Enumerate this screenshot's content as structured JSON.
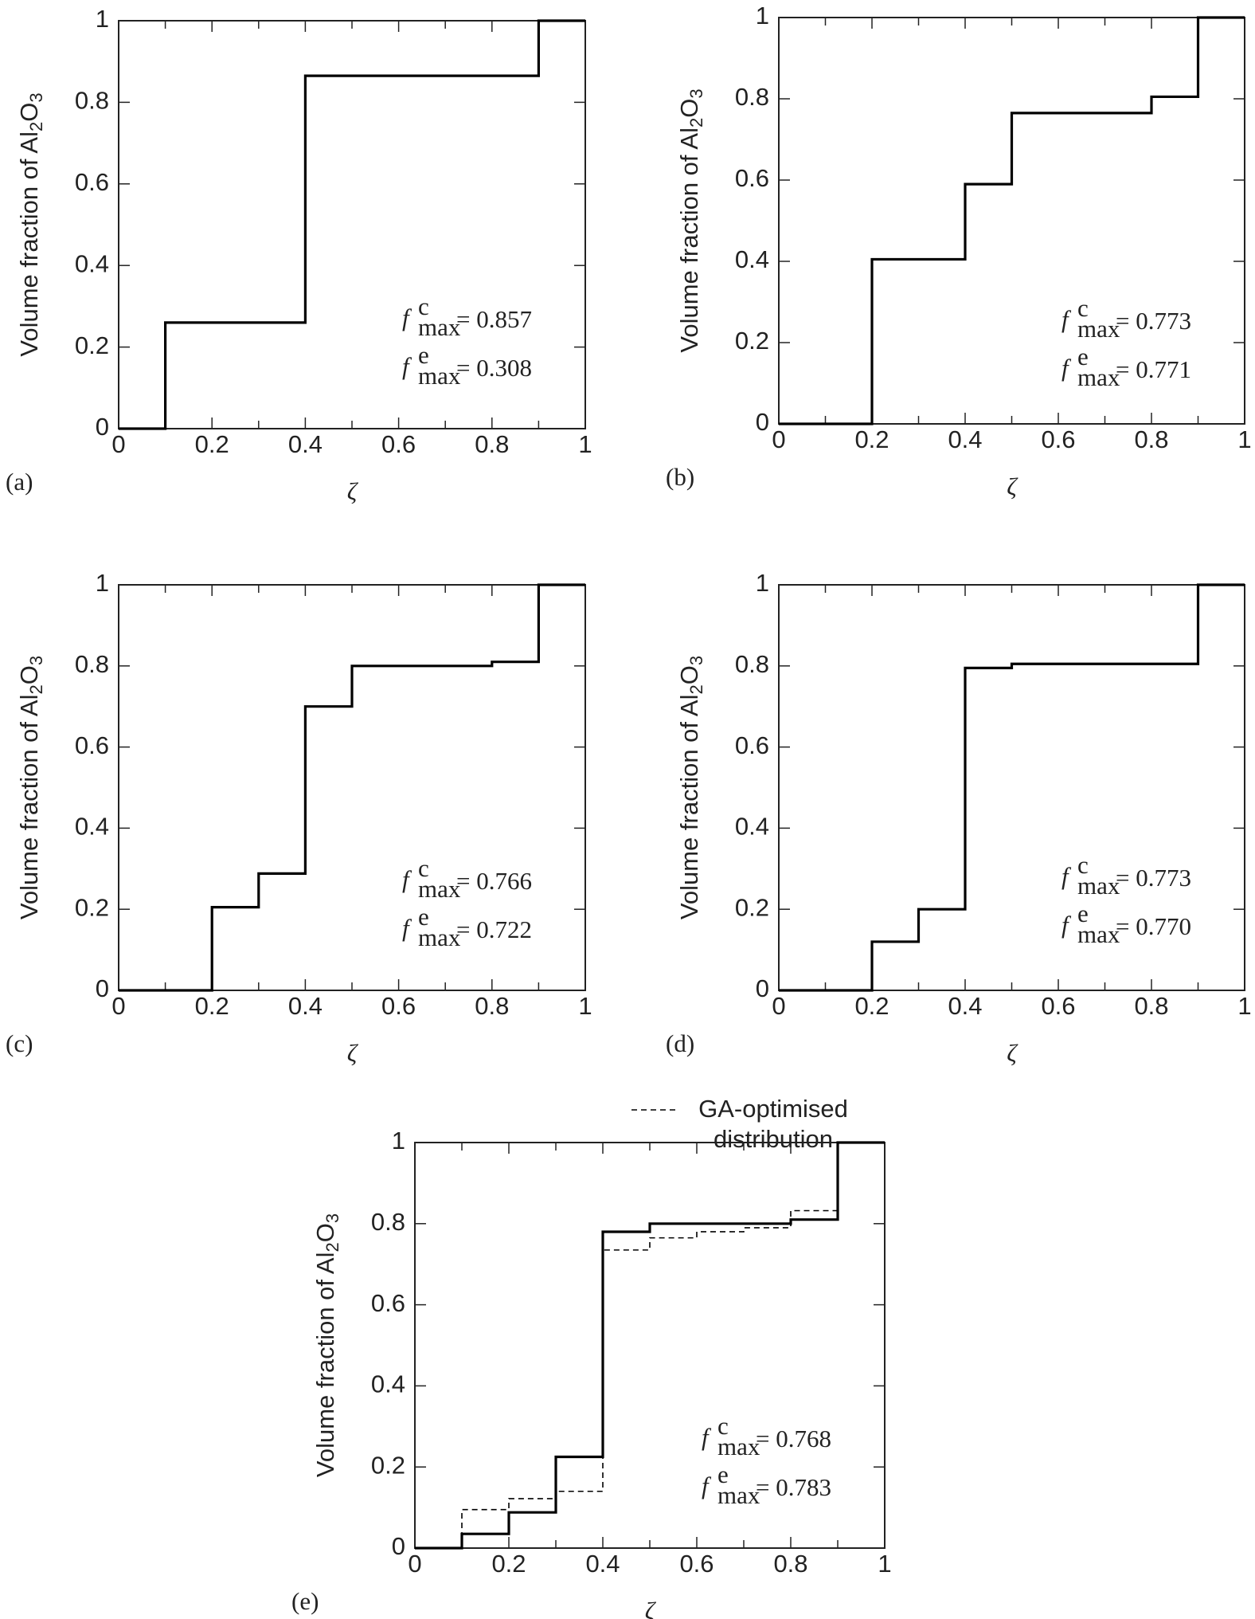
{
  "chart_data": [
    {
      "type": "step",
      "panel": "(a)",
      "ylabel": [
        "Volume fraction of Al",
        "2",
        "O",
        "3"
      ],
      "xlabel": "ζ",
      "x": [
        0,
        0.1,
        0.2,
        0.3,
        0.4,
        0.5,
        0.6,
        0.7,
        0.8,
        0.9
      ],
      "series": [
        {
          "color": "#000000",
          "dash": false,
          "values": [
            0,
            0.26,
            0.26,
            0.26,
            0.865,
            0.865,
            0.865,
            0.865,
            0.865,
            1.0
          ]
        }
      ],
      "xlim": [
        0,
        1
      ],
      "ylim": [
        0,
        1
      ],
      "xticks": [
        0,
        0.2,
        0.4,
        0.6,
        0.8,
        1
      ],
      "xminorticks": [
        0.1,
        0.3,
        0.5,
        0.7,
        0.9
      ],
      "yticks": [
        0,
        0.2,
        0.4,
        0.6,
        0.8,
        1
      ],
      "annotations": [
        {
          "symbol": "f",
          "sup": "c",
          "sub": "max",
          "text": "= 0.857"
        },
        {
          "symbol": "f",
          "sup": "e",
          "sub": "max",
          "text": "= 0.308"
        }
      ]
    },
    {
      "type": "step",
      "panel": "(b)",
      "ylabel": [
        "Volume fraction of Al",
        "2",
        "O",
        "3"
      ],
      "xlabel": "ζ",
      "x": [
        0,
        0.1,
        0.2,
        0.3,
        0.4,
        0.5,
        0.6,
        0.7,
        0.8,
        0.9
      ],
      "series": [
        {
          "color": "#000000",
          "dash": false,
          "values": [
            0,
            0,
            0.405,
            0.405,
            0.59,
            0.765,
            0.765,
            0.765,
            0.805,
            1.0
          ]
        }
      ],
      "xlim": [
        0,
        1
      ],
      "ylim": [
        0,
        1
      ],
      "xticks": [
        0,
        0.2,
        0.4,
        0.6,
        0.8,
        1
      ],
      "xminorticks": [
        0.1,
        0.3,
        0.5,
        0.7,
        0.9
      ],
      "yticks": [
        0,
        0.2,
        0.4,
        0.6,
        0.8,
        1
      ],
      "annotations": [
        {
          "symbol": "f",
          "sup": "c",
          "sub": "max",
          "text": "= 0.773"
        },
        {
          "symbol": "f",
          "sup": "e",
          "sub": "max",
          "text": "= 0.771"
        }
      ]
    },
    {
      "type": "step",
      "panel": "(c)",
      "ylabel": [
        "Volume fraction of Al",
        "2",
        "O",
        "3"
      ],
      "xlabel": "ζ",
      "x": [
        0,
        0.1,
        0.2,
        0.3,
        0.4,
        0.5,
        0.6,
        0.7,
        0.8,
        0.9
      ],
      "series": [
        {
          "color": "#000000",
          "dash": false,
          "values": [
            0,
            0,
            0.205,
            0.288,
            0.7,
            0.8,
            0.8,
            0.8,
            0.81,
            1.0
          ]
        }
      ],
      "xlim": [
        0,
        1
      ],
      "ylim": [
        0,
        1
      ],
      "xticks": [
        0,
        0.2,
        0.4,
        0.6,
        0.8,
        1
      ],
      "xminorticks": [
        0.1,
        0.3,
        0.5,
        0.7,
        0.9
      ],
      "yticks": [
        0,
        0.2,
        0.4,
        0.6,
        0.8,
        1
      ],
      "annotations": [
        {
          "symbol": "f",
          "sup": "c",
          "sub": "max",
          "text": "= 0.766"
        },
        {
          "symbol": "f",
          "sup": "e",
          "sub": "max",
          "text": "= 0.722"
        }
      ]
    },
    {
      "type": "step",
      "panel": "(d)",
      "ylabel": [
        "Volume fraction of Al",
        "2",
        "O",
        "3"
      ],
      "xlabel": "ζ",
      "x": [
        0,
        0.1,
        0.2,
        0.3,
        0.4,
        0.5,
        0.6,
        0.7,
        0.8,
        0.9
      ],
      "series": [
        {
          "color": "#000000",
          "dash": false,
          "values": [
            0,
            0,
            0.12,
            0.2,
            0.795,
            0.805,
            0.805,
            0.805,
            0.805,
            1.0
          ]
        }
      ],
      "xlim": [
        0,
        1
      ],
      "ylim": [
        0,
        1
      ],
      "xticks": [
        0,
        0.2,
        0.4,
        0.6,
        0.8,
        1
      ],
      "xminorticks": [
        0.1,
        0.3,
        0.5,
        0.7,
        0.9
      ],
      "yticks": [
        0,
        0.2,
        0.4,
        0.6,
        0.8,
        1
      ],
      "annotations": [
        {
          "symbol": "f",
          "sup": "c",
          "sub": "max",
          "text": "= 0.773"
        },
        {
          "symbol": "f",
          "sup": "e",
          "sub": "max",
          "text": "= 0.770"
        }
      ]
    },
    {
      "type": "step",
      "panel": "(e)",
      "ylabel": [
        "Volume fraction of Al",
        "2",
        "O",
        "3"
      ],
      "xlabel": "ζ",
      "x": [
        0,
        0.1,
        0.2,
        0.3,
        0.4,
        0.5,
        0.6,
        0.7,
        0.8,
        0.9
      ],
      "series": [
        {
          "color": "#000000",
          "dash": false,
          "values": [
            0,
            0.035,
            0.088,
            0.225,
            0.78,
            0.8,
            0.8,
            0.8,
            0.81,
            1.0
          ]
        },
        {
          "name": "GA-optimised distribution",
          "color": "#000000",
          "dash": true,
          "values": [
            0,
            0.095,
            0.122,
            0.14,
            0.735,
            0.765,
            0.78,
            0.79,
            0.832,
            1.0
          ]
        }
      ],
      "xlim": [
        0,
        1
      ],
      "ylim": [
        0,
        1
      ],
      "xticks": [
        0,
        0.2,
        0.4,
        0.6,
        0.8,
        1
      ],
      "xminorticks": [
        0.1,
        0.3,
        0.5,
        0.7,
        0.9
      ],
      "yticks": [
        0,
        0.2,
        0.4,
        0.6,
        0.8,
        1
      ],
      "annotations": [
        {
          "symbol": "f",
          "sup": "c",
          "sub": "max",
          "text": "= 0.768"
        },
        {
          "symbol": "f",
          "sup": "e",
          "sub": "max",
          "text": "= 0.783"
        }
      ]
    }
  ]
}
